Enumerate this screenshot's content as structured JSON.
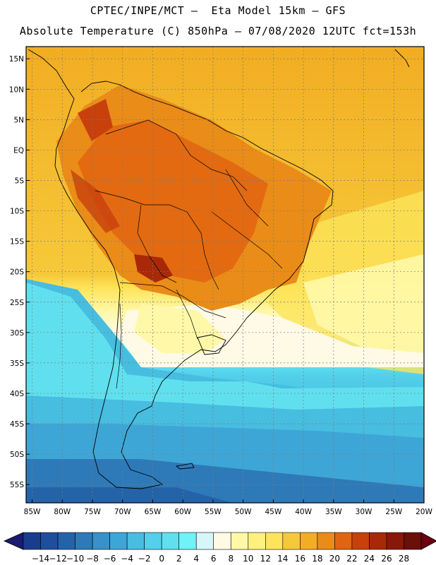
{
  "header": {
    "line1": "CPTEC/INPE/MCT –  Eta Model 15km – GFS",
    "line2": "Absolute Temperature (C) 850hPa – 07/08/2020 12UTC fct=153h"
  },
  "map": {
    "lat_labels": [
      "15N",
      "10N",
      "5N",
      "EQ",
      "5S",
      "10S",
      "15S",
      "20S",
      "25S",
      "30S",
      "35S",
      "40S",
      "45S",
      "50S",
      "55S"
    ],
    "lon_labels": [
      "85W",
      "80W",
      "75W",
      "70W",
      "65W",
      "60W",
      "55W",
      "50W",
      "45W",
      "40W",
      "35W",
      "30W",
      "25W",
      "20W"
    ],
    "lat_range": [
      17,
      -58
    ],
    "lon_range": [
      -86,
      -20
    ],
    "grid": true
  },
  "colorbar": {
    "labels": [
      "-14",
      "-12",
      "-10",
      "-8",
      "-6",
      "-4",
      "-2",
      "0",
      "2",
      "4",
      "6",
      "8",
      "10",
      "12",
      "14",
      "16",
      "18",
      "20",
      "22",
      "24",
      "26",
      "28"
    ],
    "colors": [
      "#1a3c8c",
      "#1f4f9c",
      "#2563a8",
      "#2e7ab8",
      "#3a90c8",
      "#3ea6d6",
      "#47bde0",
      "#53d0ea",
      "#60e0ee",
      "#70f2f6",
      "#d6f6fa",
      "#fffae6",
      "#fff8a8",
      "#fff080",
      "#fde45a",
      "#f6c93a",
      "#f2ad22",
      "#ea8c18",
      "#e26410",
      "#c8400c",
      "#a82808",
      "#881808",
      "#6a1008"
    ],
    "under_color": "#1a1a6e",
    "over_color": "#6a0010"
  }
}
